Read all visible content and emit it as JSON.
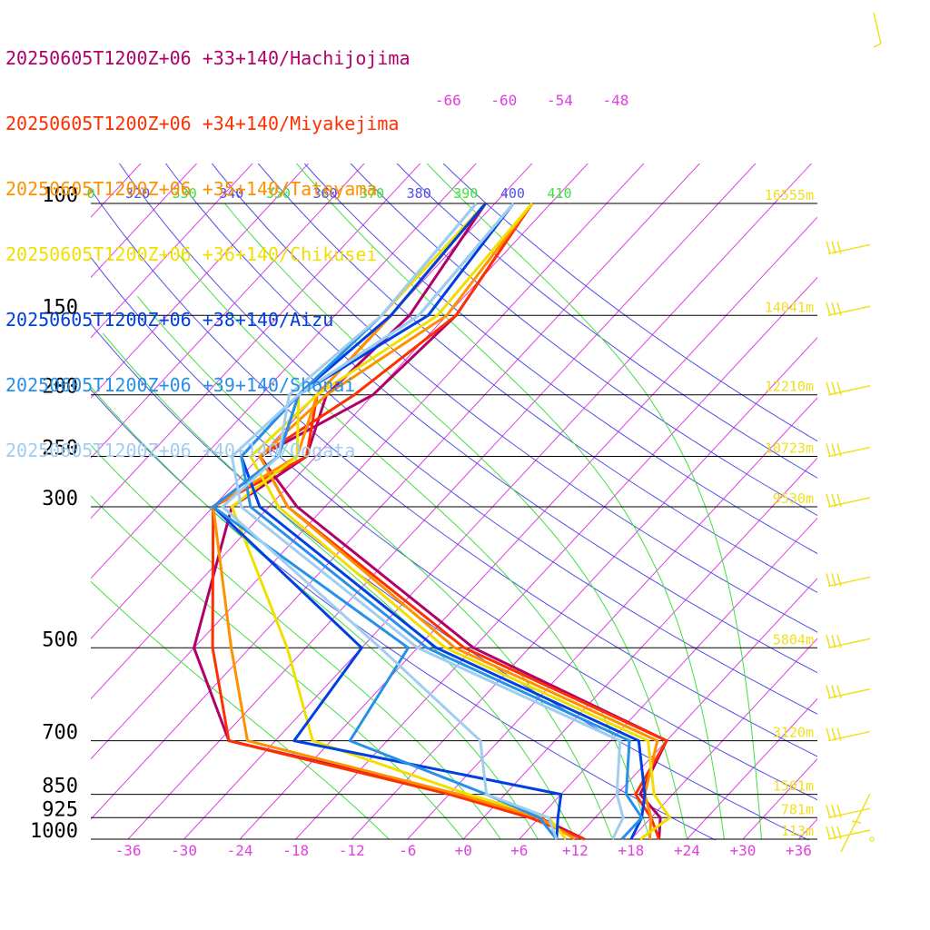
{
  "chart_data": {
    "type": "line",
    "pressure_levels": [
      100,
      150,
      200,
      250,
      300,
      500,
      700,
      850,
      925,
      1000
    ],
    "pressure_labels": [
      "100",
      "150",
      "200",
      "250",
      "300",
      "500",
      "700",
      "850",
      "925",
      "1000"
    ],
    "height_labels": [
      {
        "p": 100,
        "label": "16555m"
      },
      {
        "p": 150,
        "label": "14041m"
      },
      {
        "p": 200,
        "label": "12210m"
      },
      {
        "p": 250,
        "label": "10723m"
      },
      {
        "p": 300,
        "label": "9530m"
      },
      {
        "p": 500,
        "label": "5804m"
      },
      {
        "p": 700,
        "label": "3120m"
      },
      {
        "p": 850,
        "label": "1501m"
      },
      {
        "p": 925,
        "label": "781m"
      },
      {
        "p": 1000,
        "label": "113m"
      }
    ],
    "temperature_ticks": [
      -36,
      -30,
      -24,
      -18,
      -12,
      -6,
      0,
      6,
      12,
      18,
      24,
      30,
      36
    ],
    "temperature_tick_labels": [
      "-36",
      "-30",
      "-24",
      "-18",
      "-12",
      "-6",
      "+0",
      "+6",
      "+12",
      "+18",
      "+24",
      "+30",
      "+36"
    ],
    "isotherm_top_labels": [
      {
        "t": -66,
        "label": "-66"
      },
      {
        "t": -60,
        "label": "-60"
      },
      {
        "t": -54,
        "label": "-54"
      },
      {
        "t": -48,
        "label": "-48"
      }
    ],
    "dry_adiabats_K": [
      300,
      310,
      320,
      330,
      340,
      350,
      360,
      370,
      380,
      390,
      400,
      410
    ],
    "theta_top_labels": [
      "0",
      "320",
      "330",
      "340",
      "350",
      "360",
      "370",
      "380",
      "390",
      "400",
      "410"
    ],
    "moist_adiabats_C": [
      -8,
      0,
      4,
      8,
      12,
      16,
      20,
      24,
      28,
      32
    ],
    "xlim": [
      -40,
      38
    ],
    "ylim": [
      100,
      1000
    ],
    "series": [
      {
        "name": "20250605T1200Z+06 +33+140/Hachijojima",
        "color": "#b0006a",
        "temperature": [
          [
            100,
            -56
          ],
          [
            150,
            -53
          ],
          [
            200,
            -54
          ],
          [
            250,
            -60
          ],
          [
            300,
            -51
          ],
          [
            500,
            -18
          ],
          [
            700,
            12
          ],
          [
            850,
            14.5
          ],
          [
            925,
            19
          ],
          [
            1000,
            21
          ]
        ],
        "dewpoint": [
          [
            100,
            -61
          ],
          [
            150,
            -58
          ],
          [
            200,
            -59
          ],
          [
            250,
            -55
          ],
          [
            300,
            -58
          ],
          [
            500,
            -48
          ],
          [
            700,
            -35
          ],
          [
            850,
            -5
          ],
          [
            925,
            6
          ],
          [
            1000,
            13
          ]
        ]
      },
      {
        "name": "20250605T1200Z+06 +34+140/Miyakejima",
        "color": "#ff3000",
        "temperature": [
          [
            100,
            -56
          ],
          [
            150,
            -53
          ],
          [
            200,
            -56
          ],
          [
            250,
            -60
          ],
          [
            300,
            -52
          ],
          [
            500,
            -19
          ],
          [
            700,
            12
          ],
          [
            850,
            14
          ],
          [
            925,
            18
          ],
          [
            1000,
            21
          ]
        ],
        "dewpoint": [
          [
            100,
            -61
          ],
          [
            150,
            -60
          ],
          [
            200,
            -60
          ],
          [
            250,
            -55
          ],
          [
            300,
            -60
          ],
          [
            500,
            -46
          ],
          [
            700,
            -35
          ],
          [
            850,
            -6
          ],
          [
            925,
            5
          ],
          [
            1000,
            13
          ]
        ]
      },
      {
        "name": "20250605T1200Z+06 +35+140/Tateyama",
        "color": "#ff9000",
        "temperature": [
          [
            100,
            -56
          ],
          [
            150,
            -54
          ],
          [
            200,
            -59
          ],
          [
            250,
            -60
          ],
          [
            300,
            -52
          ],
          [
            500,
            -20
          ],
          [
            700,
            11
          ],
          [
            850,
            15
          ],
          [
            925,
            18
          ],
          [
            1000,
            20
          ]
        ],
        "dewpoint": [
          [
            100,
            -61
          ],
          [
            150,
            -60
          ],
          [
            200,
            -60
          ],
          [
            250,
            -56
          ],
          [
            300,
            -60
          ],
          [
            500,
            -44
          ],
          [
            700,
            -33
          ],
          [
            850,
            -5
          ],
          [
            925,
            6
          ],
          [
            1000,
            12
          ]
        ]
      },
      {
        "name": "20250605T1200Z+06 +36+140/Chikusei",
        "color": "#f0e000",
        "temperature": [
          [
            100,
            -56
          ],
          [
            150,
            -55
          ],
          [
            200,
            -60
          ],
          [
            250,
            -61
          ],
          [
            300,
            -53
          ],
          [
            500,
            -21
          ],
          [
            700,
            10
          ],
          [
            850,
            16
          ],
          [
            925,
            20
          ],
          [
            1000,
            19
          ]
        ],
        "dewpoint": [
          [
            100,
            -61
          ],
          [
            150,
            -61
          ],
          [
            200,
            -62
          ],
          [
            250,
            -56
          ],
          [
            300,
            -58
          ],
          [
            500,
            -38
          ],
          [
            700,
            -26
          ],
          [
            850,
            -4
          ],
          [
            925,
            7
          ],
          [
            1000,
            11
          ]
        ]
      },
      {
        "name": "20250605T1200Z+06 +38+140/Aizu",
        "color": "#0040e0",
        "temperature": [
          [
            100,
            -58
          ],
          [
            150,
            -56
          ],
          [
            200,
            -62
          ],
          [
            250,
            -62
          ],
          [
            300,
            -55
          ],
          [
            500,
            -22
          ],
          [
            700,
            9
          ],
          [
            850,
            15
          ],
          [
            925,
            17
          ],
          [
            1000,
            18
          ]
        ],
        "dewpoint": [
          [
            100,
            -61
          ],
          [
            150,
            -60
          ],
          [
            200,
            -62
          ],
          [
            250,
            -58
          ],
          [
            300,
            -60
          ],
          [
            500,
            -30
          ],
          [
            700,
            -28
          ],
          [
            850,
            6
          ],
          [
            925,
            8
          ],
          [
            1000,
            10
          ]
        ]
      },
      {
        "name": "20250605T1200Z+06 +39+140/Shonai",
        "color": "#2890e8",
        "temperature": [
          [
            100,
            -58
          ],
          [
            150,
            -57
          ],
          [
            200,
            -62
          ],
          [
            250,
            -62
          ],
          [
            300,
            -56
          ],
          [
            500,
            -23
          ],
          [
            700,
            8
          ],
          [
            850,
            13
          ],
          [
            925,
            17
          ],
          [
            1000,
            17
          ]
        ],
        "dewpoint": [
          [
            100,
            -62
          ],
          [
            150,
            -61
          ],
          [
            200,
            -62
          ],
          [
            250,
            -58
          ],
          [
            300,
            -60
          ],
          [
            500,
            -25
          ],
          [
            700,
            -22
          ],
          [
            850,
            -2
          ],
          [
            925,
            6
          ],
          [
            1000,
            10
          ]
        ]
      },
      {
        "name": "20250605T1200Z+06 +40+140/Oogata",
        "color": "#a0cdf0",
        "temperature": [
          [
            100,
            -58
          ],
          [
            150,
            -57
          ],
          [
            200,
            -62
          ],
          [
            250,
            -63
          ],
          [
            300,
            -57
          ],
          [
            500,
            -24
          ],
          [
            700,
            7
          ],
          [
            850,
            12
          ],
          [
            925,
            15
          ],
          [
            1000,
            16
          ]
        ],
        "dewpoint": [
          [
            100,
            -62
          ],
          [
            150,
            -61
          ],
          [
            200,
            -63
          ],
          [
            250,
            -58
          ],
          [
            300,
            -59
          ],
          [
            500,
            -28
          ],
          [
            700,
            -8
          ],
          [
            850,
            -2
          ],
          [
            925,
            7
          ],
          [
            1000,
            10
          ]
        ]
      }
    ],
    "wind_barb_levels": [
      120,
      150,
      200,
      250,
      300,
      400,
      500,
      600,
      700,
      925,
      1000
    ],
    "colors": {
      "isobar": "#000000",
      "isotherm": "#e040e0",
      "dry_adiabat": "#5050e8",
      "moist_adiabat": "#40e040",
      "height_label": "#f0e020",
      "wind_barb": "#f0e020",
      "temp_label": "#e040e0"
    }
  }
}
